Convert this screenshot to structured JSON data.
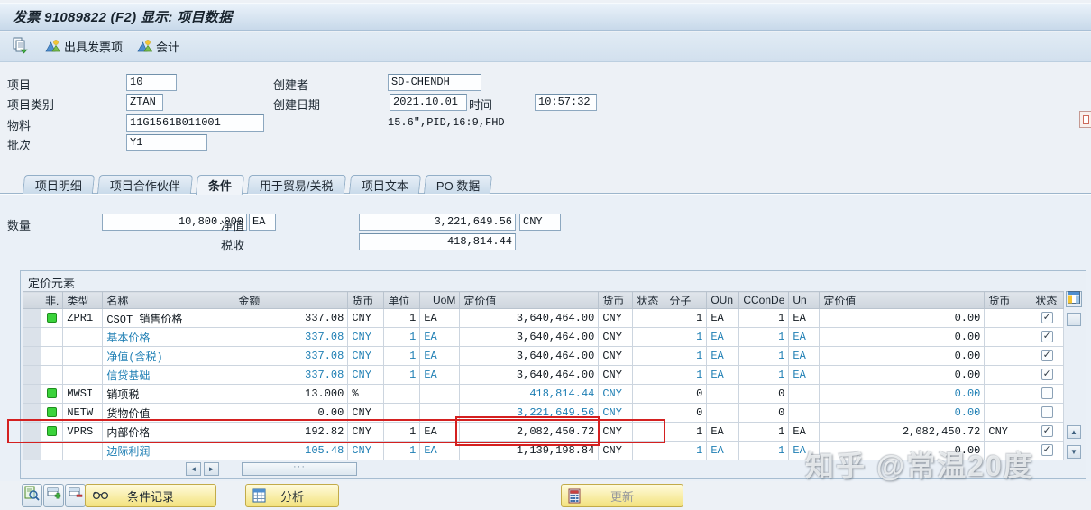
{
  "window": {
    "title": "发票 91089822  (F2) 显示: 项目数据"
  },
  "toolbar": {
    "buttons": [
      {
        "icon": "copy-document-icon",
        "label": ""
      },
      {
        "icon": "accounting-mountain-icon",
        "label": "出具发票项"
      },
      {
        "icon": "accounting-mountain-icon",
        "label": "会计"
      }
    ]
  },
  "header_form": {
    "item_label": "项目",
    "item_value": "10",
    "category_label": "项目类别",
    "category_value": "ZTAN",
    "material_label": "物料",
    "material_value": "11G1561B011001",
    "batch_label": "批次",
    "batch_value": "Y1",
    "creator_label": "创建者",
    "creator_value": "SD-CHENDH",
    "created_date_label": "创建日期",
    "created_date_value": "2021.10.01",
    "time_label": "时间",
    "time_value": "10:57:32",
    "material_description": "15.6\",PID,16:9,FHD"
  },
  "tabs": [
    {
      "label": "项目明细",
      "active": false
    },
    {
      "label": "项目合作伙伴",
      "active": false
    },
    {
      "label": "条件",
      "active": true
    },
    {
      "label": "用于贸易/关税",
      "active": false
    },
    {
      "label": "项目文本",
      "active": false
    },
    {
      "label": "PO 数据",
      "active": false
    }
  ],
  "summary": {
    "quantity_label": "数量",
    "quantity_value": "10,800.000",
    "quantity_unit": "EA",
    "net_label": "净值",
    "net_value": "3,221,649.56",
    "net_currency": "CNY",
    "tax_label": "税收",
    "tax_value": "418,814.44"
  },
  "pricing": {
    "box_title": "定价元素",
    "columns": [
      "非.",
      "类型",
      "名称",
      "金额",
      "货币",
      "单位",
      "UoM",
      "定价值",
      "货币",
      "状态",
      "分子",
      "OUn",
      "CConDe",
      "Un",
      "定价值",
      "货币",
      "状态"
    ],
    "rows": [
      {
        "ind": true,
        "type": "ZPR1",
        "name": "CSOT 销售价格",
        "amount": "337.08",
        "curr": "CNY",
        "unit": "1",
        "uom": "EA",
        "cval": "3,640,464.00",
        "curr2": "CNY",
        "st1": "",
        "num": "1",
        "oun": "EA",
        "ccd": "1",
        "un": "EA",
        "cval2": "0.00",
        "curr3": "",
        "checked": true,
        "blue": []
      },
      {
        "ind": false,
        "type": "",
        "name": "基本价格",
        "amount": "337.08",
        "curr": "CNY",
        "unit": "1",
        "uom": "EA",
        "cval": "3,640,464.00",
        "curr2": "CNY",
        "st1": "",
        "num": "1",
        "oun": "EA",
        "ccd": "1",
        "un": "EA",
        "cval2": "0.00",
        "curr3": "",
        "checked": true,
        "blue": [
          "name",
          "amount",
          "curr",
          "unit",
          "uom",
          "num",
          "oun",
          "ccd",
          "un"
        ]
      },
      {
        "ind": false,
        "type": "",
        "name": "净值(含税)",
        "amount": "337.08",
        "curr": "CNY",
        "unit": "1",
        "uom": "EA",
        "cval": "3,640,464.00",
        "curr2": "CNY",
        "st1": "",
        "num": "1",
        "oun": "EA",
        "ccd": "1",
        "un": "EA",
        "cval2": "0.00",
        "curr3": "",
        "checked": true,
        "blue": [
          "name",
          "amount",
          "curr",
          "unit",
          "uom",
          "num",
          "oun",
          "ccd",
          "un"
        ]
      },
      {
        "ind": false,
        "type": "",
        "name": "信贷基础",
        "amount": "337.08",
        "curr": "CNY",
        "unit": "1",
        "uom": "EA",
        "cval": "3,640,464.00",
        "curr2": "CNY",
        "st1": "",
        "num": "1",
        "oun": "EA",
        "ccd": "1",
        "un": "EA",
        "cval2": "0.00",
        "curr3": "",
        "checked": true,
        "blue": [
          "name",
          "amount",
          "curr",
          "unit",
          "uom",
          "num",
          "oun",
          "ccd",
          "un"
        ]
      },
      {
        "ind": true,
        "type": "MWSI",
        "name": "销项税",
        "amount": "13.000",
        "curr": "%",
        "unit": "",
        "uom": "",
        "cval": "418,814.44",
        "curr2": "CNY",
        "st1": "",
        "num": "0",
        "oun": "",
        "ccd": "0",
        "un": "",
        "cval2": "0.00",
        "curr3": "",
        "checked": false,
        "blue": [
          "cval",
          "curr2",
          "cval2"
        ]
      },
      {
        "ind": true,
        "type": "NETW",
        "name": "货物价值",
        "amount": "0.00",
        "curr": "CNY",
        "unit": "",
        "uom": "",
        "cval": "3,221,649.56",
        "curr2": "CNY",
        "st1": "",
        "num": "0",
        "oun": "",
        "ccd": "0",
        "un": "",
        "cval2": "0.00",
        "curr3": "",
        "checked": false,
        "blue": [
          "cval",
          "curr2",
          "cval2"
        ]
      },
      {
        "ind": true,
        "type": "VPRS",
        "name": "内部价格",
        "amount": "192.82",
        "curr": "CNY",
        "unit": "1",
        "uom": "EA",
        "cval": "2,082,450.72",
        "curr2": "CNY",
        "st1": "",
        "num": "1",
        "oun": "EA",
        "ccd": "1",
        "un": "EA",
        "cval2": "2,082,450.72",
        "curr3": "CNY",
        "checked": true,
        "blue": [],
        "highlighted": true
      },
      {
        "ind": false,
        "type": "",
        "name": "边际利润",
        "amount": "105.48",
        "curr": "CNY",
        "unit": "1",
        "uom": "EA",
        "cval": "1,139,198.84",
        "curr2": "CNY",
        "st1": "",
        "num": "1",
        "oun": "EA",
        "ccd": "1",
        "un": "EA",
        "cval2": "0.00",
        "curr3": "",
        "checked": true,
        "blue": [
          "name",
          "amount",
          "curr",
          "unit",
          "uom",
          "num",
          "oun",
          "ccd",
          "un"
        ]
      }
    ]
  },
  "footer": {
    "buttons": [
      {
        "icon": "magnifier-document-icon",
        "label": ""
      },
      {
        "icon": "insert-row-icon",
        "label": ""
      },
      {
        "icon": "delete-row-icon",
        "label": ""
      },
      {
        "icon": "glasses-icon",
        "label": "条件记录"
      },
      {
        "icon": "analysis-table-icon",
        "label": "分析"
      },
      {
        "icon": "calculator-icon",
        "label": "更新",
        "disabled": true
      }
    ]
  },
  "watermark": "知乎 @常温20度"
}
